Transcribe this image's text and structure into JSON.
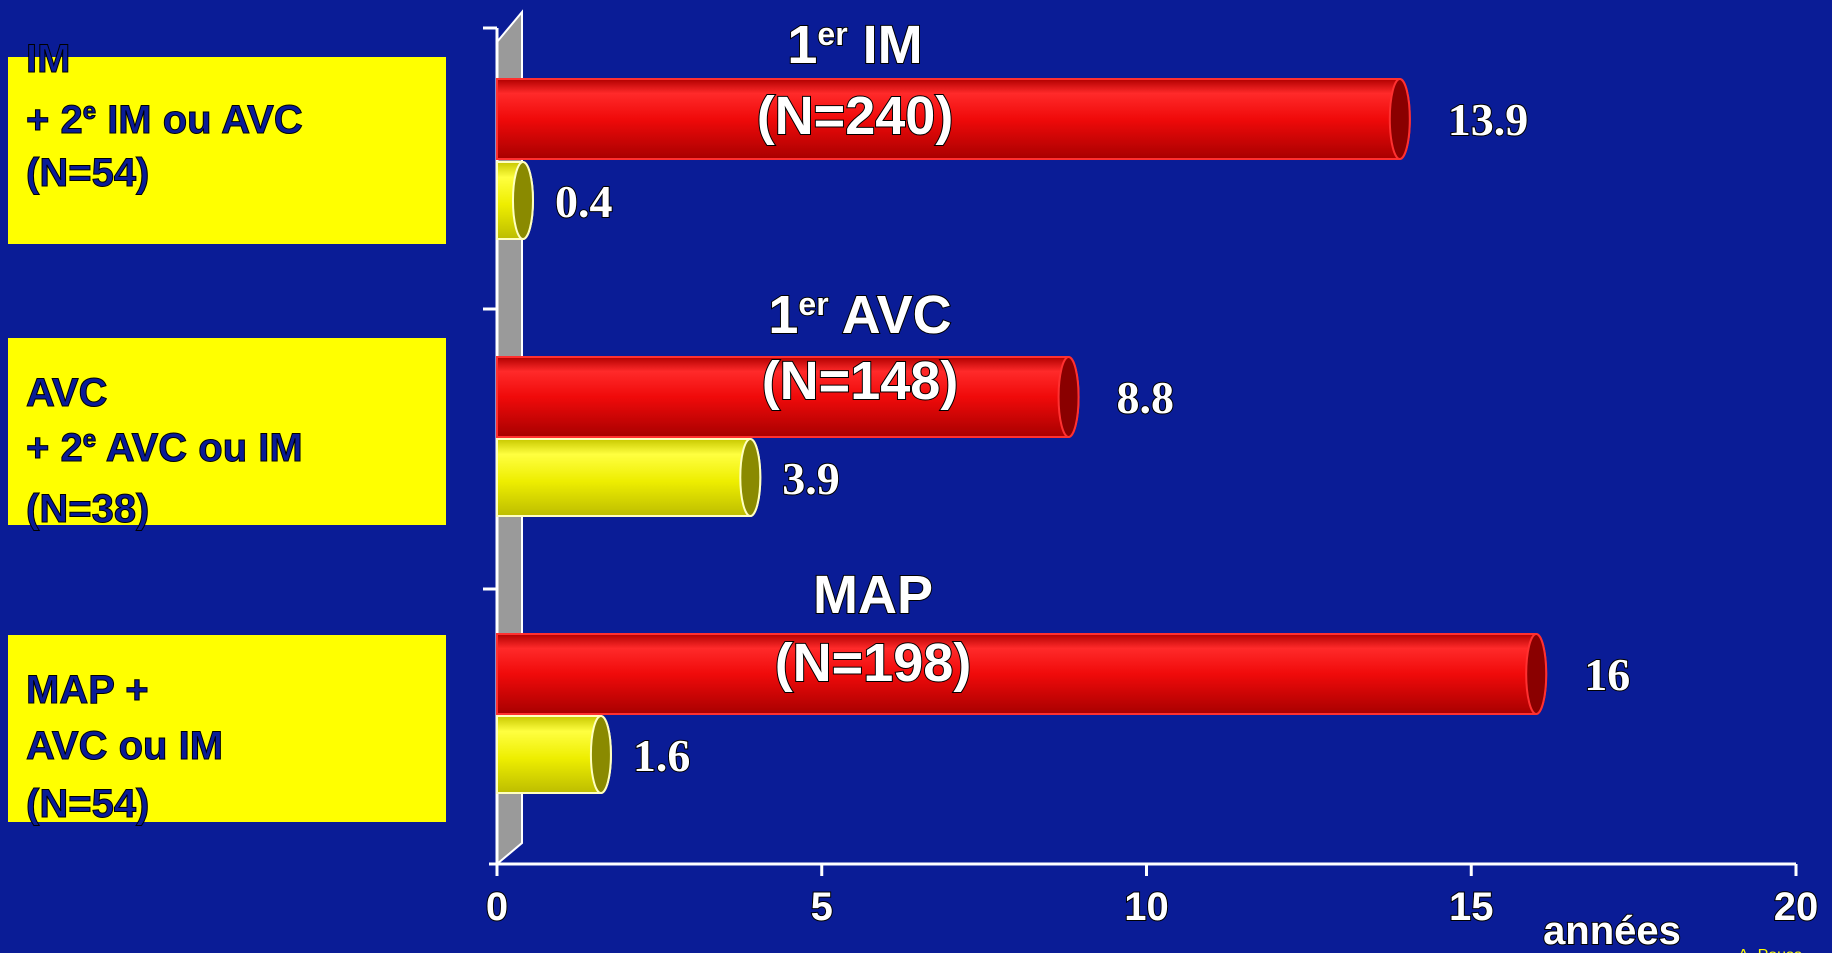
{
  "chart_data": {
    "type": "bar",
    "orientation": "horizontal",
    "xlabel": "années",
    "xlim": [
      0,
      20
    ],
    "xticks": [
      "0",
      "5",
      "10",
      "15",
      "20"
    ],
    "legend": "none",
    "groups": [
      {
        "category_label": [
          "IM",
          "+ 2e IM ou AVC",
          "(N=54)"
        ],
        "bar_label": {
          "main": "1",
          "sup": "er",
          "rest": " IM",
          "n": "(N=240)"
        },
        "red_value": 13.9,
        "red_label": "13.9",
        "yellow_value": 0.4,
        "yellow_label": "0.4"
      },
      {
        "category_label": [
          "AVC",
          "+ 2e AVC ou IM",
          "(N=38)"
        ],
        "bar_label": {
          "main": "1",
          "sup": "er",
          "rest": "  AVC",
          "n": "(N=148)"
        },
        "red_value": 8.8,
        "red_label": "8.8",
        "yellow_value": 3.9,
        "yellow_label": "3.9"
      },
      {
        "category_label": [
          "MAP  +",
          "AVC ou IM",
          "(N=54)"
        ],
        "bar_label": {
          "main": "MAP",
          "sup": "",
          "rest": "",
          "n": "(N=198)"
        },
        "red_value": 16,
        "red_label": "16",
        "yellow_value": 1.6,
        "yellow_label": "1.6"
      }
    ],
    "colors": {
      "background": "#0A1C96",
      "red_bar": "#F00A0A",
      "yellow_bar": "#F2F20A",
      "label_box": "#FFFF00",
      "wall": "#9A9A9A",
      "text": "#FFFFFF"
    }
  },
  "footer_credit": "A. Pouss"
}
